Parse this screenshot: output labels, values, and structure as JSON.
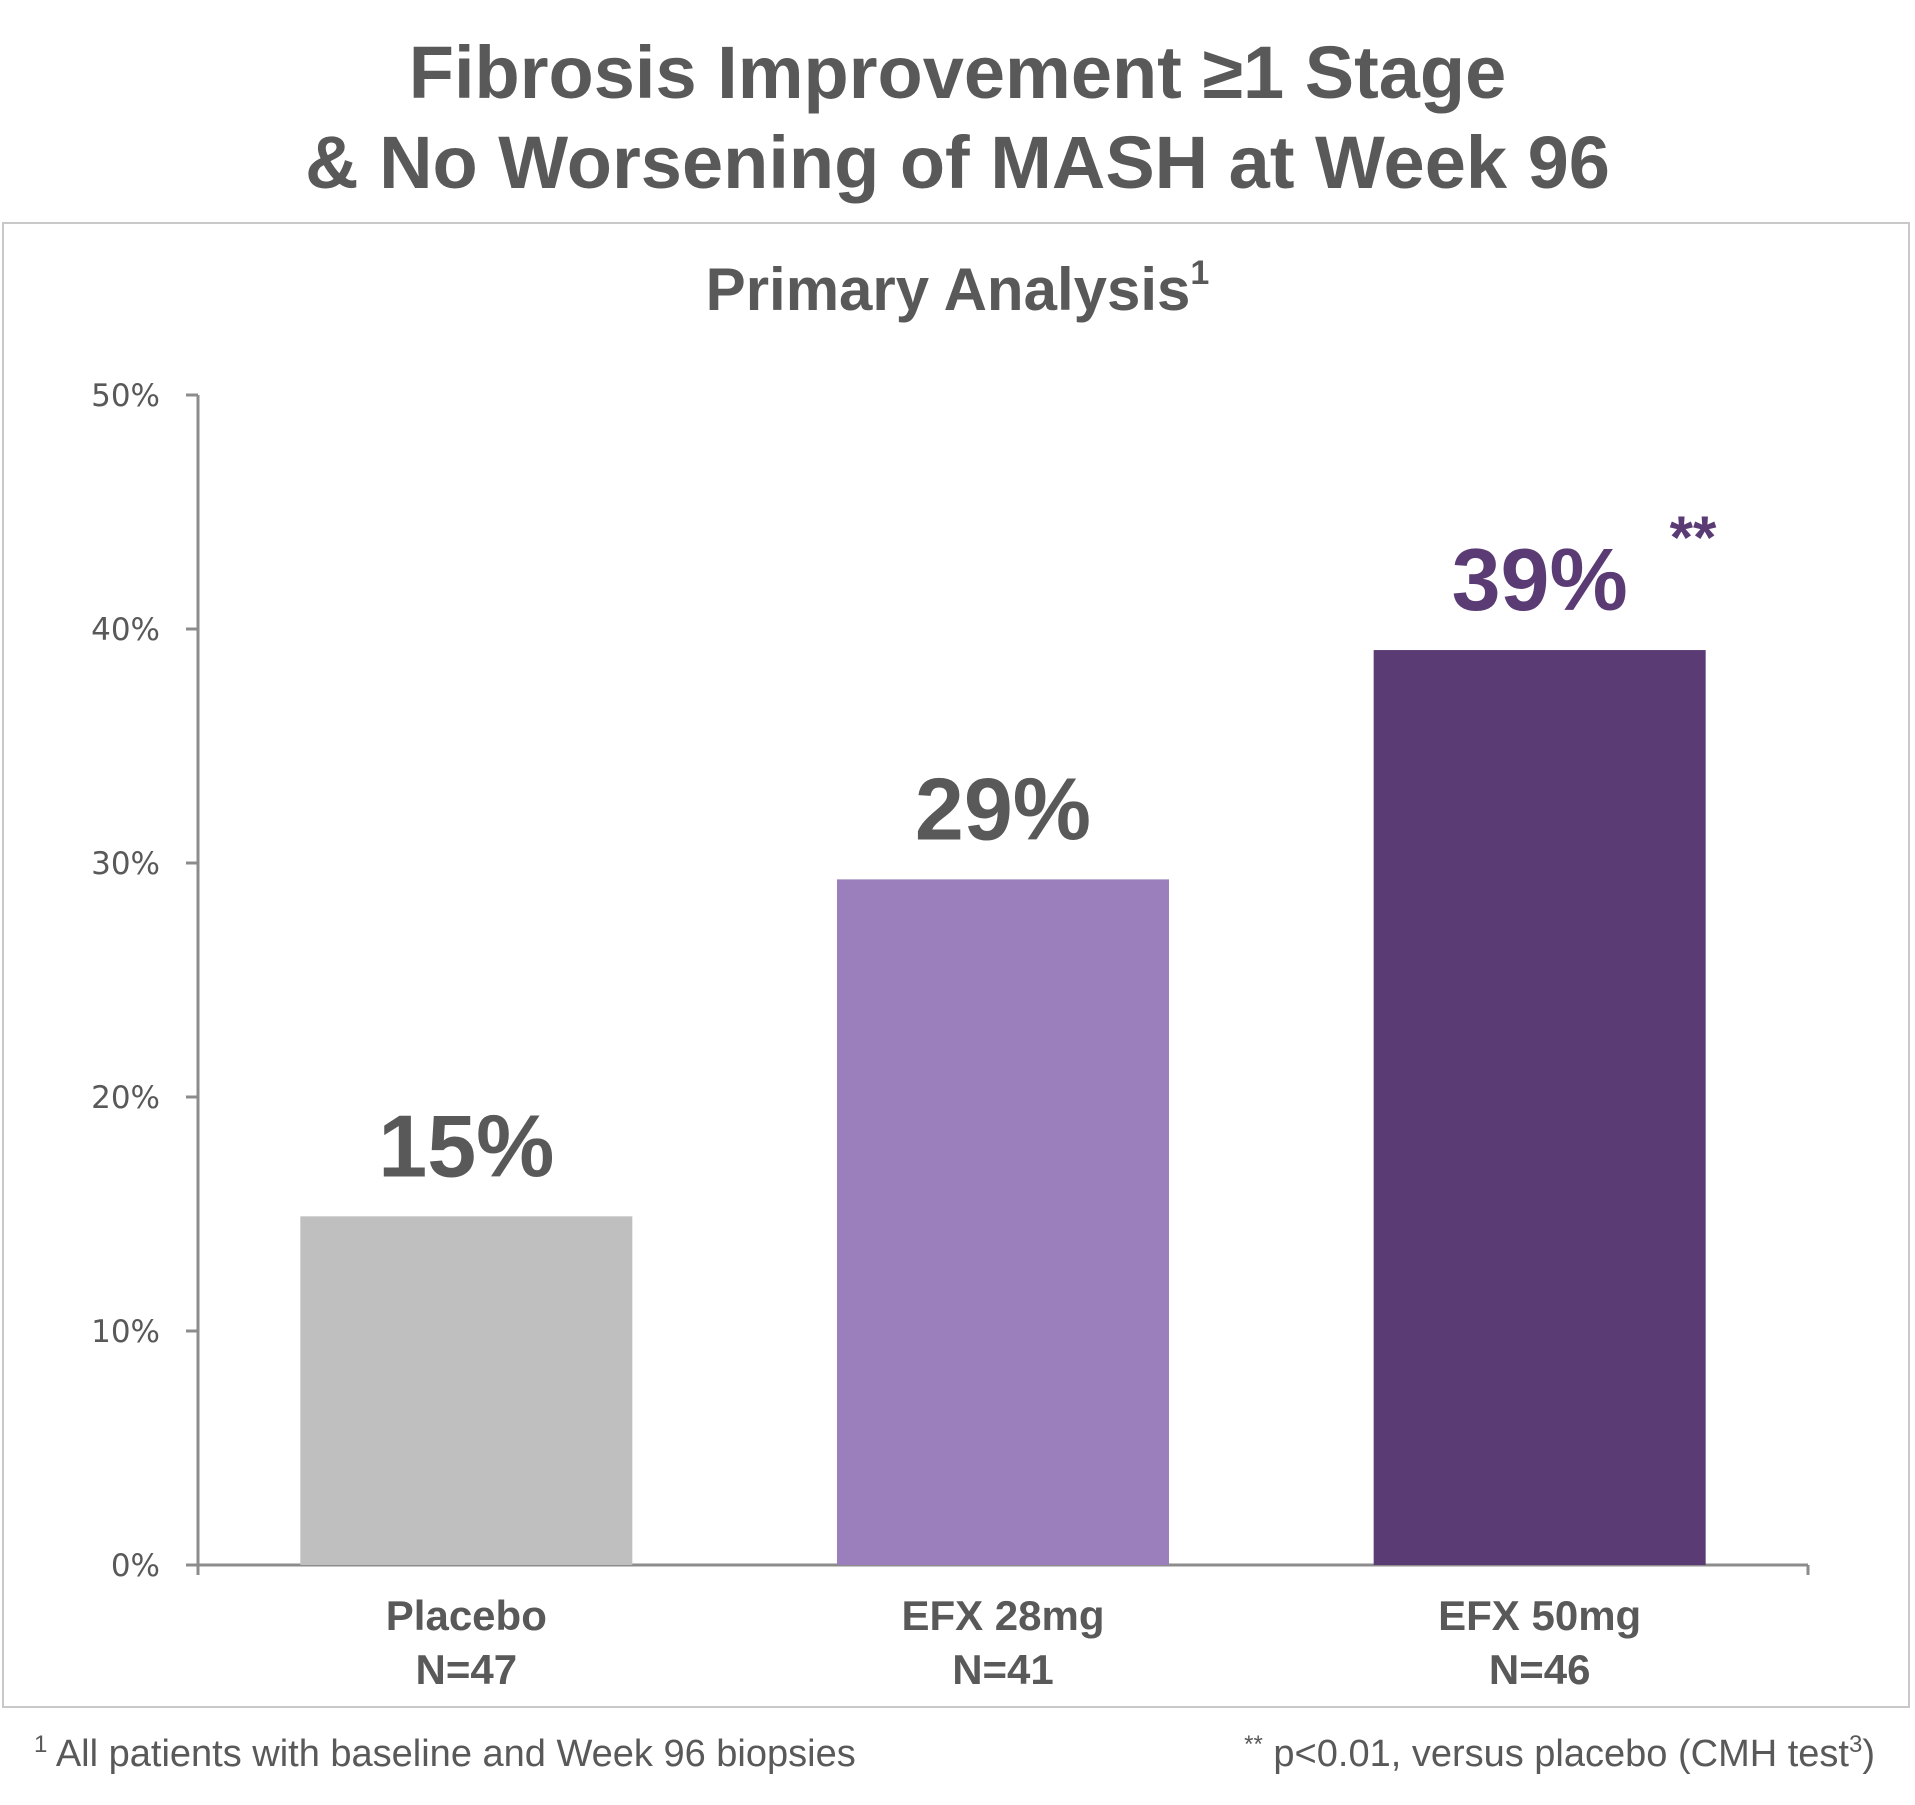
{
  "title": {
    "line1": "Fibrosis Improvement ≥1 Stage",
    "line2": "& No Worsening of MASH at Week 96"
  },
  "subtitle": {
    "text": "Primary Analysis",
    "sup": "1"
  },
  "chart_data": {
    "type": "bar",
    "title": "Primary Analysis",
    "categories": [
      "Placebo",
      "EFX 28mg",
      "EFX 50mg"
    ],
    "n_labels": [
      "N=47",
      "N=41",
      "N=46"
    ],
    "values": [
      14.9,
      29.3,
      39.1
    ],
    "data_labels": [
      "15%",
      "29%",
      "39%"
    ],
    "significance": [
      "",
      "",
      "**"
    ],
    "colors": [
      "#bfbfbf",
      "#9b7fbd",
      "#5b3b74"
    ],
    "label_colors": [
      "#595959",
      "#595959",
      "#5b3b74"
    ],
    "ylim": [
      0,
      50
    ],
    "yticks": [
      0,
      10,
      20,
      30,
      40,
      50
    ],
    "ytick_labels": [
      "0%",
      "10%",
      "20%",
      "30%",
      "40%",
      "50%"
    ],
    "xlabel": "",
    "ylabel": "",
    "grid": false
  },
  "footnotes": {
    "left": {
      "sup": "1",
      "text": "All patients with baseline and Week 96 biopsies"
    },
    "right": {
      "sup_star": "**",
      "text": "p<0.01, versus placebo (CMH test",
      "sup": "3",
      "close": ")"
    }
  }
}
